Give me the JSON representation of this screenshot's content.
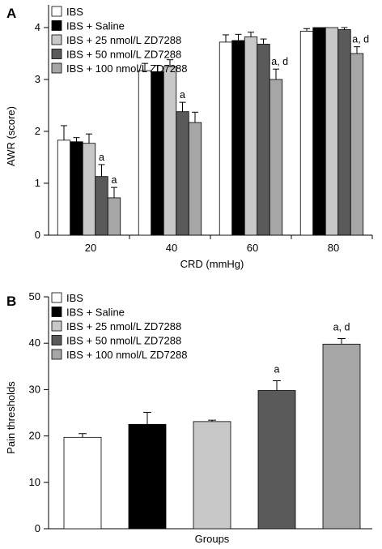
{
  "colors": {
    "IBS": "#ffffff",
    "IBS + Saline": "#000000",
    "IBS + 25 nmol/L ZD7288": "#c8c8c8",
    "IBS + 50 nmol/L ZD7288": "#5a5a5a",
    "IBS + 100 nmol/L ZD7288": "#a6a6a6"
  },
  "chart_data": [
    {
      "type": "bar",
      "panel_label": "A",
      "xlabel": "CRD (mmHg)",
      "ylabel": "AWR (score)",
      "ylim": [
        0,
        4
      ],
      "yticks": [
        0,
        1,
        2,
        3,
        4
      ],
      "legend_position": "top-left",
      "categories": [
        "20",
        "40",
        "60",
        "80"
      ],
      "series": [
        {
          "name": "IBS",
          "values": [
            1.83,
            3.17,
            3.72,
            3.93
          ],
          "errors": [
            0.28,
            0.14,
            0.14,
            0.05
          ],
          "annotations": [
            "",
            "",
            "",
            ""
          ]
        },
        {
          "name": "IBS + Saline",
          "values": [
            1.8,
            3.15,
            3.75,
            4.0
          ],
          "errors": [
            0.08,
            0.12,
            0.12,
            0.0
          ],
          "annotations": [
            "",
            "",
            "",
            ""
          ]
        },
        {
          "name": "IBS + 25 nmol/L ZD7288",
          "values": [
            1.77,
            3.25,
            3.82,
            4.0
          ],
          "errors": [
            0.18,
            0.13,
            0.09,
            0.0
          ],
          "annotations": [
            "",
            "",
            "",
            ""
          ]
        },
        {
          "name": "IBS + 50 nmol/L ZD7288",
          "values": [
            1.13,
            2.38,
            3.68,
            3.96
          ],
          "errors": [
            0.23,
            0.18,
            0.1,
            0.04
          ],
          "annotations": [
            "a",
            "a",
            "",
            ""
          ]
        },
        {
          "name": "IBS + 100 nmol/L ZD7288",
          "values": [
            0.72,
            2.17,
            3.0,
            3.5
          ],
          "errors": [
            0.2,
            0.2,
            0.2,
            0.13
          ],
          "annotations": [
            "a",
            "",
            "a, d",
            "a, d"
          ]
        }
      ]
    },
    {
      "type": "bar",
      "panel_label": "B",
      "xlabel": "Groups",
      "ylabel": "Pain thresholds",
      "ylim": [
        0,
        50
      ],
      "yticks": [
        0,
        10,
        20,
        30,
        40,
        50
      ],
      "legend_position": "top-left",
      "categories": [
        "IBS",
        "IBS + Saline",
        "IBS + 25 nmol/L ZD7288",
        "IBS + 50 nmol/L ZD7288",
        "IBS + 100 nmol/L ZD7288"
      ],
      "values": [
        19.7,
        22.5,
        23.1,
        29.8,
        39.8
      ],
      "errors": [
        0.8,
        2.6,
        0.3,
        2.1,
        1.2
      ],
      "annotations": [
        "",
        "",
        "",
        "a",
        "a, d"
      ]
    }
  ]
}
